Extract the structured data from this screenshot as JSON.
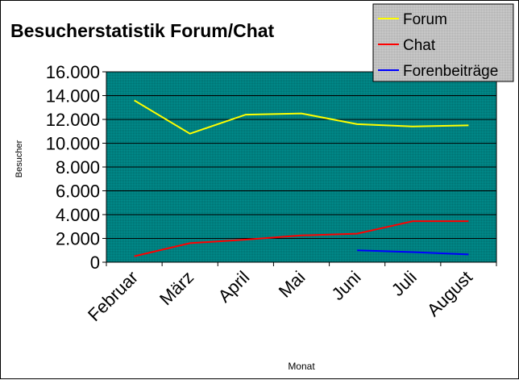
{
  "chart_data": {
    "type": "line",
    "title": "Besucherstatistik Forum/Chat",
    "xlabel": "Monat",
    "ylabel": "Besucher",
    "categories": [
      "Februar",
      "März",
      "April",
      "Mai",
      "Juni",
      "Juli",
      "August"
    ],
    "ylim": [
      0,
      16000
    ],
    "yticks": [
      "0",
      "2.000",
      "4.000",
      "6.000",
      "8.000",
      "10.000",
      "12.000",
      "14.000",
      "16.000"
    ],
    "grid": true,
    "legend_position": "top-right",
    "plot_background": "#008080",
    "series": [
      {
        "name": "Forum",
        "color": "#ffff00",
        "values": [
          13600,
          10800,
          12400,
          12500,
          11600,
          11400,
          11500
        ]
      },
      {
        "name": "Chat",
        "color": "#ff0000",
        "values": [
          500,
          1600,
          1900,
          2250,
          2400,
          3450,
          3450
        ]
      },
      {
        "name": "Forenbeiträge",
        "color": "#0000ff",
        "values": [
          null,
          null,
          null,
          null,
          1000,
          850,
          650
        ]
      }
    ]
  }
}
